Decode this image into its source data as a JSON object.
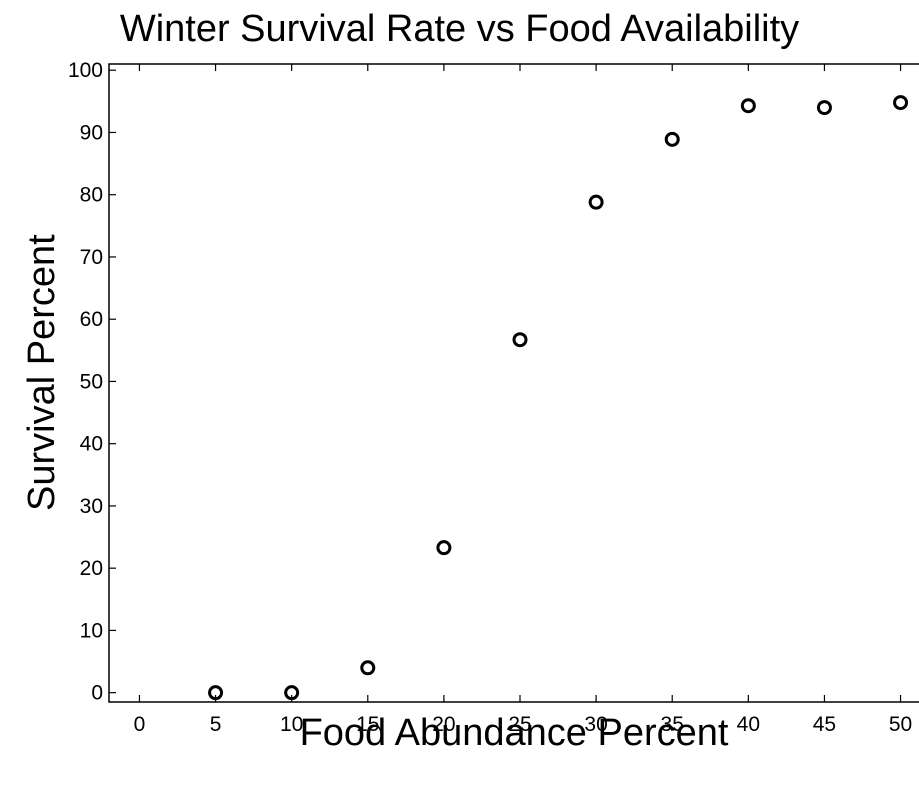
{
  "chart_data": {
    "type": "scatter",
    "title": "Winter Survival Rate vs Food Availability",
    "xlabel": "Food Abundance Percent",
    "ylabel": "Survival Percent",
    "xlim": [
      -2,
      52
    ],
    "ylim": [
      -1.5,
      101
    ],
    "xticks": [
      0,
      5,
      10,
      15,
      20,
      25,
      30,
      35,
      40,
      45,
      50
    ],
    "yticks": [
      0,
      10,
      20,
      30,
      40,
      50,
      60,
      70,
      80,
      90,
      100
    ],
    "grid": false,
    "legend": "none",
    "marker": "open-circle",
    "colors": {
      "marker": "#000000",
      "axes": "#000000",
      "background": "#ffffff"
    },
    "series": [
      {
        "x": [
          5,
          10,
          15,
          20,
          25,
          30,
          35,
          40,
          45,
          50
        ],
        "y": [
          0,
          0,
          4,
          23.3,
          56.7,
          78.8,
          88.9,
          94.3,
          94,
          94.8
        ]
      }
    ]
  }
}
